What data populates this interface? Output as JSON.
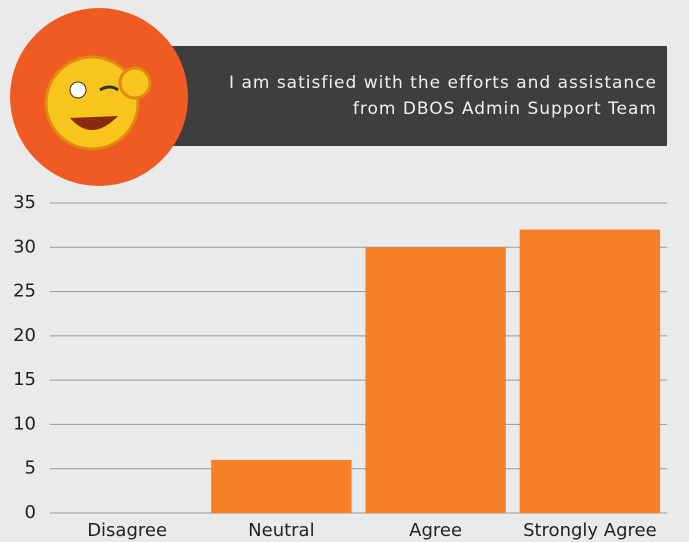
{
  "chart_data": {
    "type": "bar",
    "title": "I am satisfied with the efforts and assistance from DBOS Admin Support Team",
    "categories": [
      "Disagree",
      "Neutral",
      "Agree",
      "Strongly Agree"
    ],
    "values": [
      0,
      6,
      30,
      32
    ],
    "color": "#f58025",
    "ylim": [
      0,
      35
    ],
    "yticks": [
      0,
      5,
      10,
      15,
      20,
      25,
      30,
      35
    ],
    "grid": true
  }
}
